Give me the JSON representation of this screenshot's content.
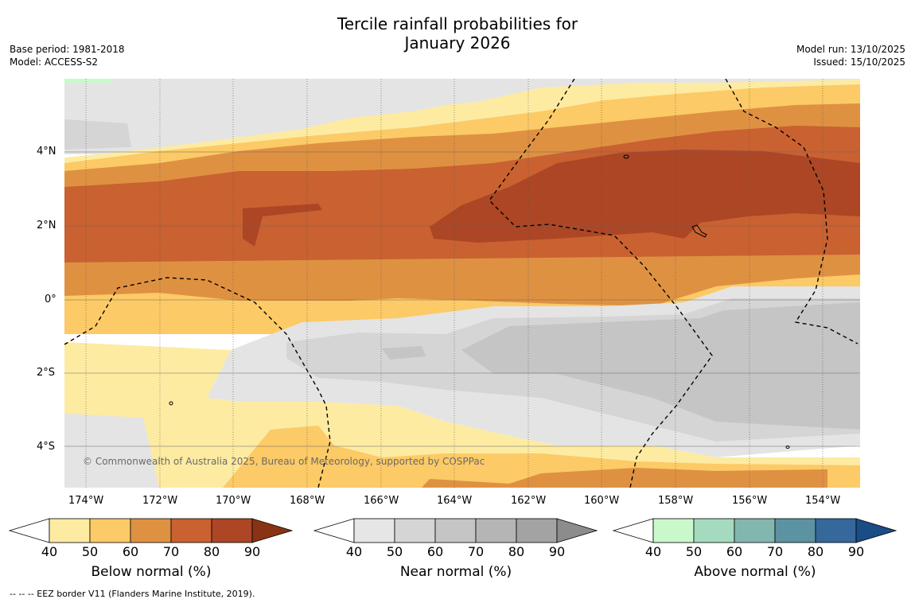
{
  "title": {
    "line1": "Tercile rainfall probabilities for",
    "line2": "January 2026"
  },
  "meta_left": {
    "base_period": "Base period: 1981-2018",
    "model": "Model: ACCESS-S2"
  },
  "meta_right": {
    "model_run": "Model run: 13/10/2025",
    "issued": "Issued: 15/10/2025"
  },
  "map": {
    "lat_labels": [
      "4°N",
      "2°N",
      "0°",
      "2°S",
      "4°S"
    ],
    "lon_labels": [
      "174°W",
      "172°W",
      "170°W",
      "168°W",
      "166°W",
      "164°W",
      "162°W",
      "160°W",
      "158°W",
      "156°W",
      "154°W"
    ],
    "credit": "© Commonwealth of Australia 2025, Bureau of Meteorology, supported by COSPPac"
  },
  "colorbars": [
    {
      "label": "Below normal (%)",
      "ticks": [
        "40",
        "50",
        "60",
        "70",
        "80",
        "90"
      ],
      "colors": [
        "#fdeba2",
        "#fcca66",
        "#df9142",
        "#c96131",
        "#ac4625",
        "#8a3314"
      ]
    },
    {
      "label": "Near normal (%)",
      "ticks": [
        "40",
        "50",
        "60",
        "70",
        "80",
        "90"
      ],
      "colors": [
        "#e6e6e6",
        "#d5d5d5",
        "#c5c5c5",
        "#b5b5b5",
        "#a3a3a3",
        "#8c8c8c"
      ]
    },
    {
      "label": "Above normal (%)",
      "ticks": [
        "40",
        "50",
        "60",
        "70",
        "80",
        "90"
      ],
      "colors": [
        "#c9f9cb",
        "#a4dbbf",
        "#82b7b0",
        "#5b93a2",
        "#35689b",
        "#1a4c86"
      ]
    }
  ],
  "footer": "--  --  -- EEZ border V11 (Flanders Marine Institute, 2019)."
}
